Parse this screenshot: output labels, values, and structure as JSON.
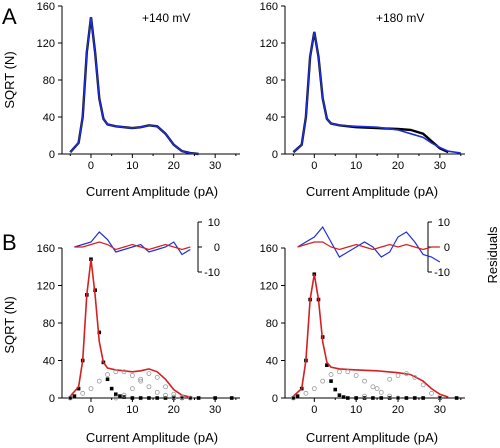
{
  "figure": {
    "panel_letters": [
      "A",
      "B"
    ],
    "voltage_labels": [
      "+140 mV",
      "+180 mV"
    ],
    "y_label": "SQRT (N)",
    "x_label": "Current Amplitude (pA)",
    "residual_label": "Residuals",
    "colors": {
      "data": "#000000",
      "fit": "#1f2fd6",
      "fit_b": "#d42020",
      "component": "#9a9a9a",
      "residual_blue": "#1f2fd6",
      "residual_red": "#d42020"
    }
  },
  "chart_data": [
    {
      "type": "line",
      "panel": "A",
      "annotation": "+140 mV",
      "xlabel": "Current Amplitude (pA)",
      "ylabel": "SQRT (N)",
      "xlim": [
        -7,
        36
      ],
      "ylim": [
        0,
        160
      ],
      "xticks": [
        0,
        10,
        20,
        30
      ],
      "yticks": [
        0,
        40,
        80,
        120,
        160
      ],
      "series": [
        {
          "role": "data",
          "color": "#000000",
          "x": [
            -5,
            -3,
            -2,
            -1,
            0,
            1,
            2,
            3,
            4,
            6,
            8,
            10,
            12,
            14,
            16,
            18,
            20,
            22,
            24,
            26
          ],
          "y": [
            2,
            12,
            40,
            110,
            148,
            110,
            60,
            38,
            32,
            30,
            29,
            28,
            29,
            31,
            30,
            22,
            10,
            3,
            1,
            0
          ]
        },
        {
          "role": "fit",
          "color": "#1f2fd6",
          "x": [
            -5,
            -3,
            -2,
            -1,
            0,
            1,
            2,
            3,
            4,
            6,
            8,
            10,
            12,
            14,
            16,
            18,
            20,
            22,
            24,
            26
          ],
          "y": [
            2,
            12,
            40,
            110,
            148,
            110,
            60,
            38,
            32,
            30,
            29,
            28,
            29,
            31,
            30,
            22,
            10,
            3,
            1,
            0
          ]
        }
      ]
    },
    {
      "type": "line",
      "panel": "A",
      "annotation": "+180 mV",
      "xlabel": "Current Amplitude (pA)",
      "ylabel": "",
      "xlim": [
        -7,
        36
      ],
      "ylim": [
        0,
        160
      ],
      "xticks": [
        0,
        10,
        20,
        30
      ],
      "yticks": [
        0,
        40,
        80,
        120,
        160
      ],
      "series": [
        {
          "role": "data",
          "color": "#000000",
          "x": [
            -5,
            -3,
            -2,
            -1,
            0,
            1,
            2,
            3,
            4,
            6,
            10,
            15,
            20,
            23,
            26,
            28,
            30,
            32
          ],
          "y": [
            2,
            10,
            40,
            105,
            132,
            105,
            60,
            38,
            33,
            31,
            29,
            28,
            27,
            26,
            22,
            14,
            6,
            2
          ]
        },
        {
          "role": "fit",
          "color": "#1f2fd6",
          "x": [
            -5,
            -3,
            -2,
            -1,
            0,
            1,
            2,
            3,
            4,
            6,
            10,
            15,
            20,
            23,
            26,
            28,
            30,
            32,
            35
          ],
          "y": [
            2,
            10,
            40,
            105,
            132,
            105,
            60,
            38,
            33,
            31,
            30,
            29,
            26,
            22,
            18,
            12,
            7,
            3,
            1
          ]
        }
      ]
    },
    {
      "type": "scatter",
      "panel": "B",
      "annotation": "",
      "xlabel": "Current Amplitude (pA)",
      "ylabel": "SQRT (N)",
      "xlim": [
        -7,
        36
      ],
      "ylim": [
        0,
        160
      ],
      "xticks": [
        0,
        10,
        20,
        30
      ],
      "yticks": [
        0,
        40,
        80,
        120,
        160
      ],
      "residuals": {
        "ylabel": "Residuals",
        "yticks": [
          10,
          0,
          -10
        ],
        "blue_x": [
          -4,
          -2,
          0,
          2,
          4,
          6,
          8,
          10,
          12,
          14,
          16,
          18,
          20,
          22,
          24
        ],
        "blue_y": [
          0,
          1,
          2,
          6,
          3,
          -2,
          -1,
          0,
          1,
          -2,
          -1,
          0,
          2,
          -3,
          -1
        ],
        "red_x": [
          -4,
          -2,
          0,
          2,
          4,
          6,
          8,
          10,
          12,
          14,
          16,
          18,
          20,
          22,
          24
        ],
        "red_y": [
          0,
          0,
          1,
          2,
          1,
          -1,
          0,
          1,
          0,
          -1,
          0,
          1,
          0,
          -1,
          0
        ]
      },
      "series": [
        {
          "role": "data",
          "color": "#000000",
          "x": [
            -5,
            -4,
            -3,
            -2,
            -1,
            0,
            1,
            2,
            3,
            4,
            5,
            6,
            7,
            8,
            10,
            12,
            14,
            16,
            18,
            20,
            22,
            24,
            26,
            30,
            34
          ],
          "y": [
            0,
            2,
            10,
            40,
            110,
            148,
            115,
            70,
            38,
            20,
            10,
            4,
            2,
            1,
            0,
            0,
            0,
            0,
            0,
            0,
            0,
            0,
            0,
            0,
            0
          ]
        },
        {
          "role": "fit",
          "color": "#d42020",
          "x": [
            -5,
            -3,
            -2,
            -1,
            0,
            1,
            2,
            3,
            4,
            6,
            8,
            10,
            12,
            14,
            16,
            18,
            20,
            22,
            24
          ],
          "y": [
            2,
            12,
            40,
            110,
            148,
            110,
            60,
            38,
            32,
            30,
            29,
            28,
            29,
            31,
            28,
            20,
            9,
            3,
            1
          ]
        },
        {
          "role": "component",
          "color": "#9a9a9a",
          "x": [
            -5,
            -2,
            0,
            2,
            4,
            6,
            8,
            10,
            12,
            14,
            16,
            18,
            20,
            22
          ],
          "y": [
            0,
            5,
            10,
            18,
            25,
            28,
            28,
            24,
            18,
            12,
            6,
            3,
            1,
            0
          ]
        },
        {
          "role": "component",
          "color": "#9a9a9a",
          "x": [
            6,
            8,
            10,
            12,
            14,
            16,
            18,
            20,
            22,
            24
          ],
          "y": [
            0,
            3,
            10,
            20,
            26,
            22,
            12,
            4,
            1,
            0
          ]
        }
      ]
    },
    {
      "type": "scatter",
      "panel": "B",
      "annotation": "",
      "xlabel": "Current Amplitude (pA)",
      "ylabel": "",
      "xlim": [
        -7,
        36
      ],
      "ylim": [
        0,
        160
      ],
      "xticks": [
        0,
        10,
        20,
        30
      ],
      "yticks": [
        0,
        40,
        80,
        120,
        160
      ],
      "residuals": {
        "ylabel": "Residuals",
        "yticks": [
          10,
          0,
          -10
        ],
        "blue_x": [
          -4,
          -2,
          0,
          2,
          4,
          6,
          8,
          10,
          12,
          14,
          16,
          18,
          20,
          22,
          24,
          26,
          28,
          30
        ],
        "blue_y": [
          0,
          2,
          4,
          8,
          2,
          -4,
          -2,
          0,
          2,
          0,
          -4,
          -2,
          4,
          6,
          2,
          -3,
          -4,
          -6
        ],
        "red_x": [
          -4,
          -2,
          0,
          2,
          4,
          6,
          8,
          10,
          12,
          14,
          16,
          18,
          20,
          22,
          24,
          26,
          28,
          30
        ],
        "red_y": [
          0,
          1,
          2,
          2,
          0,
          -1,
          0,
          1,
          0,
          -1,
          0,
          1,
          0,
          1,
          0,
          -1,
          0,
          0
        ]
      },
      "series": [
        {
          "role": "data",
          "color": "#000000",
          "x": [
            -5,
            -4,
            -3,
            -2,
            -1,
            0,
            1,
            2,
            3,
            4,
            5,
            6,
            7,
            8,
            10,
            12,
            14,
            16,
            18,
            20,
            22,
            24,
            26,
            30,
            34
          ],
          "y": [
            0,
            2,
            10,
            40,
            105,
            132,
            105,
            65,
            35,
            18,
            9,
            3,
            1,
            0,
            0,
            0,
            0,
            0,
            0,
            0,
            0,
            0,
            0,
            0,
            0
          ]
        },
        {
          "role": "fit",
          "color": "#d42020",
          "x": [
            -5,
            -3,
            -2,
            -1,
            0,
            1,
            2,
            3,
            4,
            6,
            10,
            15,
            20,
            23,
            26,
            28,
            30,
            32
          ],
          "y": [
            2,
            10,
            40,
            105,
            132,
            105,
            60,
            38,
            33,
            31,
            30,
            29,
            27,
            25,
            18,
            10,
            4,
            1
          ]
        },
        {
          "role": "component",
          "color": "#9a9a9a",
          "x": [
            -5,
            -2,
            0,
            2,
            4,
            6,
            8,
            10,
            12,
            14,
            16,
            18,
            20
          ],
          "y": [
            0,
            5,
            10,
            18,
            25,
            28,
            28,
            24,
            18,
            12,
            6,
            2,
            0
          ]
        },
        {
          "role": "component",
          "color": "#9a9a9a",
          "x": [
            12,
            15,
            18,
            20,
            22,
            24,
            26,
            28,
            30
          ],
          "y": [
            2,
            10,
            20,
            24,
            26,
            22,
            14,
            5,
            1
          ]
        }
      ]
    }
  ]
}
